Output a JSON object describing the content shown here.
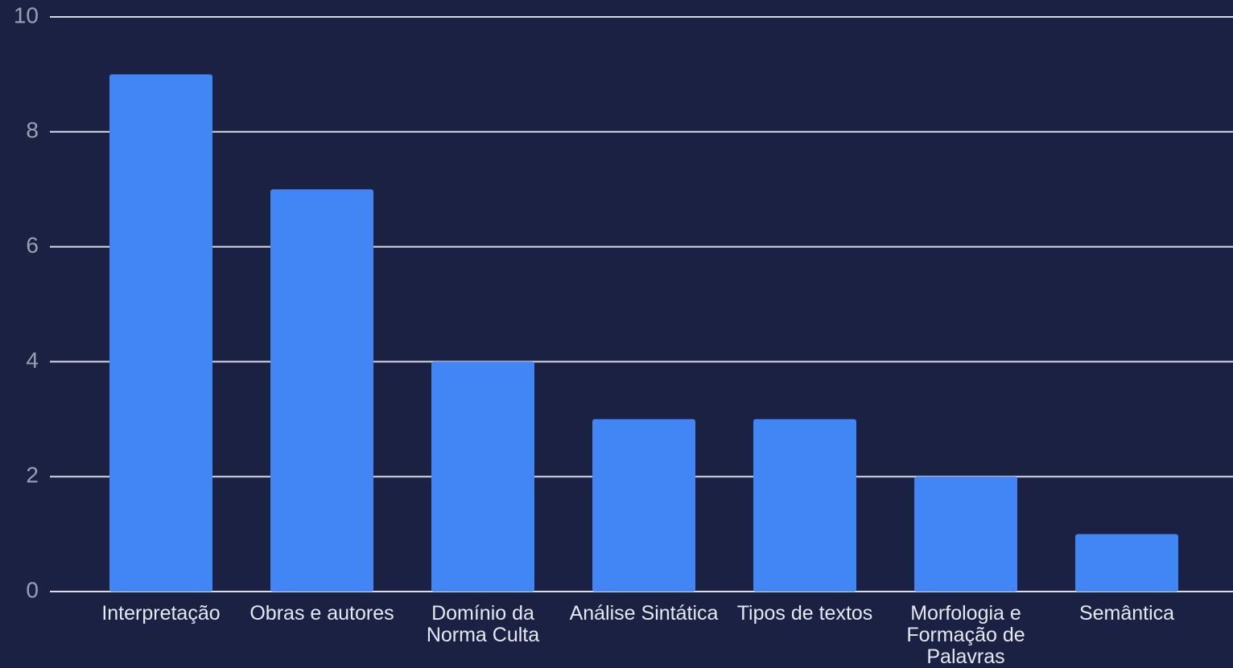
{
  "chart_data": {
    "type": "bar",
    "categories": [
      "Interpretação",
      "Obras e autores",
      "Domínio da Norma Culta",
      "Análise Sintática",
      "Tipos de textos",
      "Morfologia e Formação de Palavras",
      "Semântica"
    ],
    "values": [
      9,
      7,
      4,
      3,
      3,
      2,
      1
    ],
    "color": "#4285f4",
    "ylim": [
      0,
      10
    ],
    "yticks": [
      0,
      2,
      4,
      6,
      8,
      10
    ],
    "grid": true
  }
}
